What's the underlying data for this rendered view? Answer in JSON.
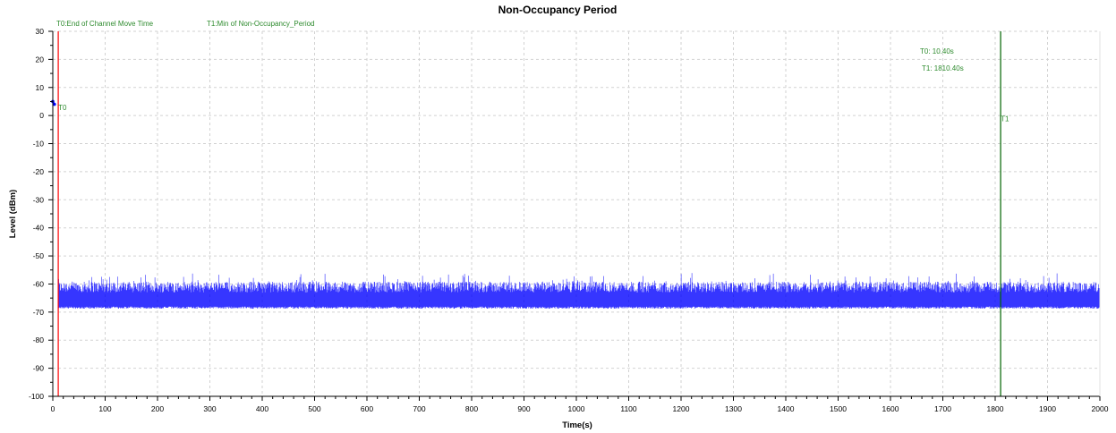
{
  "chart_data": {
    "type": "line",
    "title": "Non-Occupancy Period",
    "xlabel": "Time(s)",
    "ylabel": "Level (dBm)",
    "xlim": [
      0,
      2000
    ],
    "ylim": [
      -100,
      30
    ],
    "x_ticks": [
      "0",
      "100",
      "200",
      "300",
      "400",
      "500",
      "600",
      "700",
      "800",
      "900",
      "1000",
      "1100",
      "1200",
      "1300",
      "1400",
      "1500",
      "1600",
      "1700",
      "1800",
      "1900",
      "2000"
    ],
    "y_ticks": [
      "30",
      "20",
      "10",
      "0",
      "-10",
      "-20",
      "-30",
      "-40",
      "-50",
      "-60",
      "-70",
      "-80",
      "-90",
      "-100"
    ],
    "x_tick_values": [
      0,
      100,
      200,
      300,
      400,
      500,
      600,
      700,
      800,
      900,
      1000,
      1100,
      1200,
      1300,
      1400,
      1500,
      1600,
      1700,
      1800,
      1900,
      2000
    ],
    "y_tick_values": [
      30,
      20,
      10,
      0,
      -10,
      -20,
      -30,
      -40,
      -50,
      -60,
      -70,
      -80,
      -90,
      -100
    ],
    "grid": true,
    "series": [
      {
        "color": "#0000ff",
        "noise_floor_dbm": -68,
        "noise_peak_range_dbm": [
          -63,
          -56
        ],
        "x_start": 10.4,
        "x_end": 2000
      }
    ],
    "initial_points": [
      {
        "x": 0,
        "y": 5
      },
      {
        "x": 3,
        "y": 4
      }
    ],
    "markers": [
      {
        "name": "T0",
        "x": 10.4,
        "color": "#ff0000",
        "label_y": 2,
        "label": "T0"
      },
      {
        "name": "T1",
        "x": 1810.4,
        "color": "#006400",
        "label_y": -2,
        "label": "T1"
      }
    ],
    "marker_legend": [
      "T0:End of Channel Move Time",
      "T1:Min of Non-Occupancy_Period"
    ],
    "marker_values": [
      "T0: 10.40s",
      "T1: 1810.40s"
    ],
    "colors": {
      "accent_green": "#2e8b2e",
      "t0_line": "#ff0000",
      "t1_line": "#006400",
      "trace": "#0000ff"
    }
  }
}
